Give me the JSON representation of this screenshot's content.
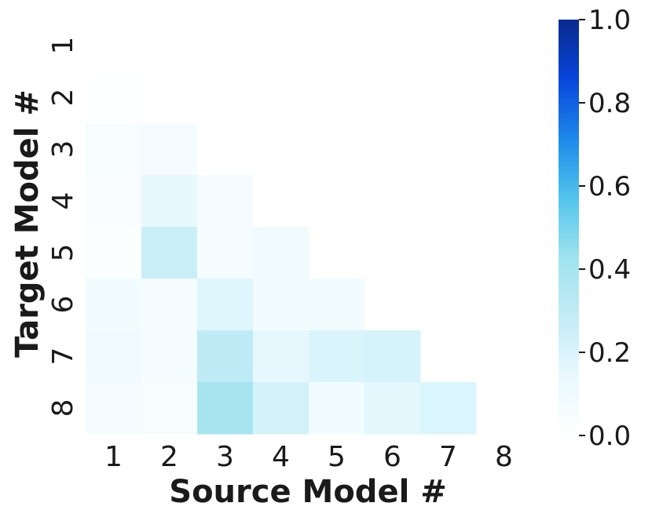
{
  "chart_data": {
    "type": "heatmap",
    "title": "",
    "xlabel": "Source Model #",
    "ylabel": "Target Model #",
    "x_categories": [
      "1",
      "2",
      "3",
      "4",
      "5",
      "6",
      "7",
      "8"
    ],
    "y_categories": [
      "1",
      "2",
      "3",
      "4",
      "5",
      "6",
      "7",
      "8"
    ],
    "masked": "upper triangle including diagonal",
    "values": [
      [
        null,
        null,
        null,
        null,
        null,
        null,
        null,
        null
      ],
      [
        0.02,
        null,
        null,
        null,
        null,
        null,
        null,
        null
      ],
      [
        0.05,
        0.06,
        null,
        null,
        null,
        null,
        null,
        null
      ],
      [
        0.04,
        0.14,
        0.06,
        null,
        null,
        null,
        null,
        null
      ],
      [
        0.03,
        0.26,
        0.06,
        0.09,
        null,
        null,
        null,
        null
      ],
      [
        0.08,
        0.07,
        0.18,
        0.08,
        0.08,
        null,
        null,
        null
      ],
      [
        0.1,
        0.07,
        0.3,
        0.15,
        0.2,
        0.21,
        null,
        null
      ],
      [
        0.06,
        0.05,
        0.4,
        0.22,
        0.08,
        0.16,
        0.19,
        null
      ]
    ],
    "colorbar": {
      "range": [
        0.0,
        1.0
      ],
      "ticks": [
        "0.0",
        "0.2",
        "0.4",
        "0.6",
        "0.8",
        "1.0"
      ],
      "colormap": [
        "#ffffff",
        "#e8f9fe",
        "#c2ecf7",
        "#9fe3ee",
        "#52c4ec",
        "#1e88ea",
        "#0845dc",
        "#082a8e"
      ]
    }
  }
}
